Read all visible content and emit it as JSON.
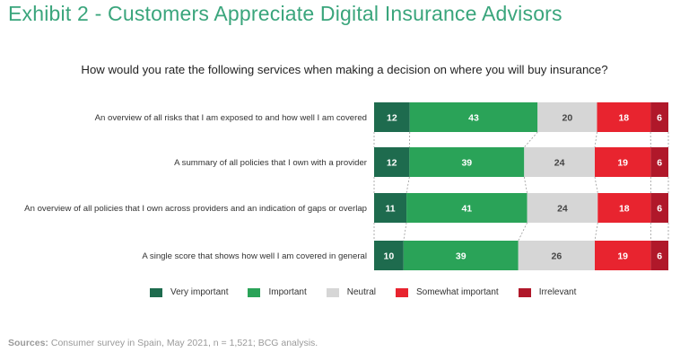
{
  "title": "Exhibit 2 - Customers Appreciate Digital Insurance Advisors",
  "question": "How would you rate the following services when making a decision on where you will buy insurance?",
  "sources": {
    "label": "Sources:",
    "text": "Consumer survey in Spain, May 2021, n = 1,521; BCG analysis."
  },
  "colors": {
    "very_important": "#1e6b4e",
    "important": "#2aa358",
    "neutral": "#d6d6d6",
    "somewhat_important": "#e8242f",
    "irrelevant": "#b0182a",
    "title": "#3aa57c"
  },
  "chart_data": {
    "type": "bar",
    "orientation": "horizontal",
    "stacked": true,
    "categories": [
      "An overview of all risks that I am exposed to and how well I am covered",
      "A summary of all policies that I own with a provider",
      "An overview of all policies that I own across providers and an indication of gaps or overlap",
      "A single score that shows how well I am covered in general"
    ],
    "series": [
      {
        "name": "Very important",
        "values": [
          12,
          12,
          11,
          10
        ]
      },
      {
        "name": "Important",
        "values": [
          43,
          39,
          41,
          39
        ]
      },
      {
        "name": "Neutral",
        "values": [
          20,
          24,
          24,
          26
        ]
      },
      {
        "name": "Somewhat important",
        "values": [
          18,
          19,
          18,
          19
        ]
      },
      {
        "name": "Irrelevant",
        "values": [
          6,
          6,
          6,
          6
        ]
      }
    ],
    "legend_position": "bottom",
    "grid": false
  }
}
